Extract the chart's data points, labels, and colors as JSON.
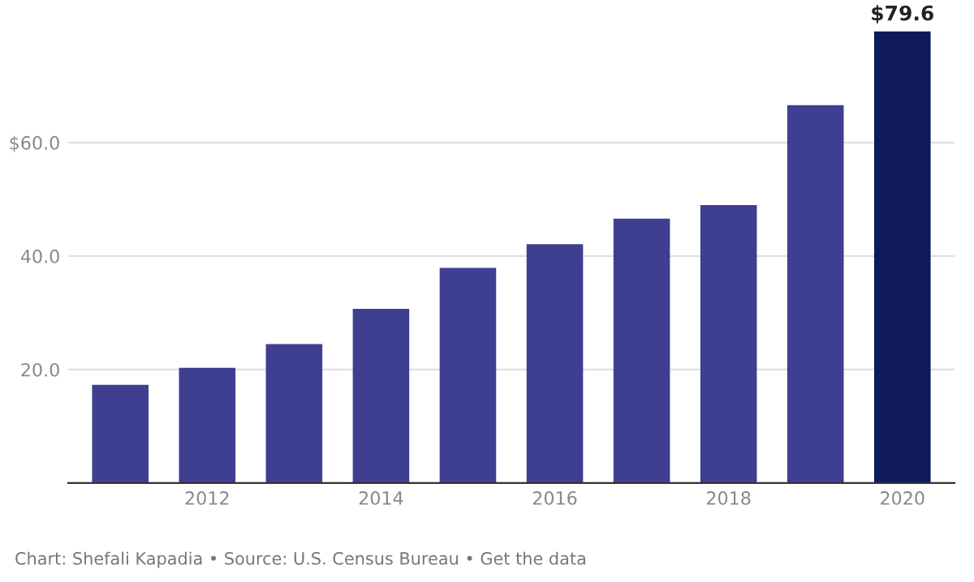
{
  "chart_data": {
    "type": "bar",
    "categories": [
      null,
      "2012",
      null,
      "2014",
      null,
      "2016",
      null,
      "2018",
      null,
      "2020"
    ],
    "values": [
      17.3,
      20.3,
      24.5,
      30.7,
      37.9,
      42.1,
      46.6,
      49.0,
      66.6,
      79.6
    ],
    "colors": [
      "#3f3f91",
      "#3f3f91",
      "#3f3f91",
      "#3f3f91",
      "#3f3f91",
      "#3f3f91",
      "#3f3f91",
      "#3f3f91",
      "#3f3f91",
      "#0e1a5c"
    ],
    "value_labels": [
      null,
      null,
      null,
      null,
      null,
      null,
      null,
      null,
      null,
      "$79.6"
    ],
    "ylim": [
      0,
      80
    ],
    "yticks": [
      {
        "value": 20,
        "label": "20.0"
      },
      {
        "value": 40,
        "label": "40.0"
      },
      {
        "value": 60,
        "label": "$60.0"
      }
    ],
    "grid": "y",
    "annotations": [
      "Chart: Shefali Kapadia • Source: U.S. Census Bureau • Get the data"
    ]
  }
}
